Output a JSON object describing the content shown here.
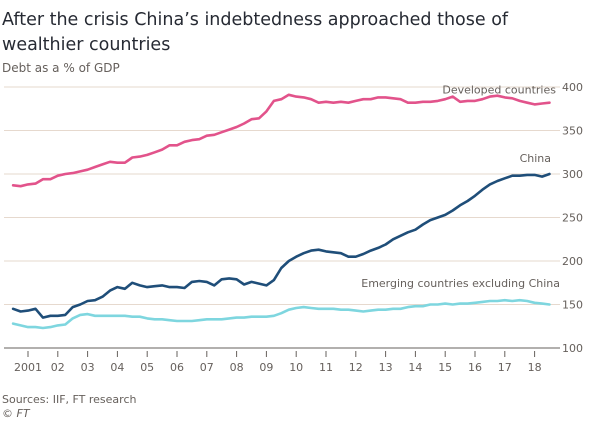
{
  "title": "After the crisis China’s indebtedness approached those of wealthier countries",
  "subtitle": "Debt as a % of GDP",
  "source": "Sources: IIF, FT research",
  "credit": "© FT",
  "colors": {
    "developed": "#e2538b",
    "china": "#1f4e79",
    "emerging": "#7ed6df",
    "grid": "#e6d9ce",
    "axis": "#66605c"
  },
  "chart_data": {
    "type": "line",
    "title": "After the crisis China’s indebtedness approached those of wealthier countries",
    "subtitle": "Debt as a % of GDP",
    "xlabel": "",
    "ylabel": "",
    "ylim": [
      100,
      400
    ],
    "xlim": [
      2000.5,
      2018.75
    ],
    "yticks": [
      100,
      150,
      200,
      250,
      300,
      350,
      400
    ],
    "y_axis_side": "right",
    "grid": true,
    "xticks": [
      {
        "x": 2001,
        "label": "2001"
      },
      {
        "x": 2002,
        "label": "02"
      },
      {
        "x": 2003,
        "label": "03"
      },
      {
        "x": 2004,
        "label": "04"
      },
      {
        "x": 2005,
        "label": "05"
      },
      {
        "x": 2006,
        "label": "06"
      },
      {
        "x": 2007,
        "label": "07"
      },
      {
        "x": 2008,
        "label": "08"
      },
      {
        "x": 2009,
        "label": "09"
      },
      {
        "x": 2010,
        "label": "10"
      },
      {
        "x": 2011,
        "label": "11"
      },
      {
        "x": 2012,
        "label": "12"
      },
      {
        "x": 2013,
        "label": "13"
      },
      {
        "x": 2014,
        "label": "14"
      },
      {
        "x": 2015,
        "label": "15"
      },
      {
        "x": 2016,
        "label": "16"
      },
      {
        "x": 2017,
        "label": "17"
      },
      {
        "x": 2018,
        "label": "18"
      }
    ],
    "series": [
      {
        "name": "Developed countries",
        "color": "#e2538b",
        "points": [
          [
            2000.5,
            287
          ],
          [
            2000.75,
            286
          ],
          [
            2001.0,
            288
          ],
          [
            2001.25,
            289
          ],
          [
            2001.5,
            294
          ],
          [
            2001.75,
            294
          ],
          [
            2002.0,
            298
          ],
          [
            2002.25,
            300
          ],
          [
            2002.5,
            301
          ],
          [
            2002.75,
            303
          ],
          [
            2003.0,
            305
          ],
          [
            2003.25,
            308
          ],
          [
            2003.5,
            311
          ],
          [
            2003.75,
            314
          ],
          [
            2004.0,
            313
          ],
          [
            2004.25,
            313
          ],
          [
            2004.5,
            319
          ],
          [
            2004.75,
            320
          ],
          [
            2005.0,
            322
          ],
          [
            2005.25,
            325
          ],
          [
            2005.5,
            328
          ],
          [
            2005.75,
            333
          ],
          [
            2006.0,
            333
          ],
          [
            2006.25,
            337
          ],
          [
            2006.5,
            339
          ],
          [
            2006.75,
            340
          ],
          [
            2007.0,
            344
          ],
          [
            2007.25,
            345
          ],
          [
            2007.5,
            348
          ],
          [
            2007.75,
            351
          ],
          [
            2008.0,
            354
          ],
          [
            2008.25,
            358
          ],
          [
            2008.5,
            363
          ],
          [
            2008.75,
            364
          ],
          [
            2009.0,
            372
          ],
          [
            2009.25,
            384
          ],
          [
            2009.5,
            386
          ],
          [
            2009.75,
            391
          ],
          [
            2010.0,
            389
          ],
          [
            2010.25,
            388
          ],
          [
            2010.5,
            386
          ],
          [
            2010.75,
            382
          ],
          [
            2011.0,
            383
          ],
          [
            2011.25,
            382
          ],
          [
            2011.5,
            383
          ],
          [
            2011.75,
            382
          ],
          [
            2012.0,
            384
          ],
          [
            2012.25,
            386
          ],
          [
            2012.5,
            386
          ],
          [
            2012.75,
            388
          ],
          [
            2013.0,
            388
          ],
          [
            2013.25,
            387
          ],
          [
            2013.5,
            386
          ],
          [
            2013.75,
            382
          ],
          [
            2014.0,
            382
          ],
          [
            2014.25,
            383
          ],
          [
            2014.5,
            383
          ],
          [
            2014.75,
            384
          ],
          [
            2015.0,
            386
          ],
          [
            2015.25,
            389
          ],
          [
            2015.5,
            383
          ],
          [
            2015.75,
            384
          ],
          [
            2016.0,
            384
          ],
          [
            2016.25,
            386
          ],
          [
            2016.5,
            389
          ],
          [
            2016.75,
            390
          ],
          [
            2017.0,
            388
          ],
          [
            2017.25,
            387
          ],
          [
            2017.5,
            384
          ],
          [
            2017.75,
            382
          ],
          [
            2018.0,
            380
          ],
          [
            2018.25,
            381
          ],
          [
            2018.5,
            382
          ]
        ]
      },
      {
        "name": "China",
        "color": "#1f4e79",
        "points": [
          [
            2000.5,
            145
          ],
          [
            2000.75,
            142
          ],
          [
            2001.0,
            143
          ],
          [
            2001.25,
            145
          ],
          [
            2001.5,
            135
          ],
          [
            2001.75,
            137
          ],
          [
            2002.0,
            137
          ],
          [
            2002.25,
            138
          ],
          [
            2002.5,
            147
          ],
          [
            2002.75,
            150
          ],
          [
            2003.0,
            154
          ],
          [
            2003.25,
            155
          ],
          [
            2003.5,
            159
          ],
          [
            2003.75,
            166
          ],
          [
            2004.0,
            170
          ],
          [
            2004.25,
            168
          ],
          [
            2004.5,
            175
          ],
          [
            2004.75,
            172
          ],
          [
            2005.0,
            170
          ],
          [
            2005.25,
            171
          ],
          [
            2005.5,
            172
          ],
          [
            2005.75,
            170
          ],
          [
            2006.0,
            170
          ],
          [
            2006.25,
            169
          ],
          [
            2006.5,
            176
          ],
          [
            2006.75,
            177
          ],
          [
            2007.0,
            176
          ],
          [
            2007.25,
            172
          ],
          [
            2007.5,
            179
          ],
          [
            2007.75,
            180
          ],
          [
            2008.0,
            179
          ],
          [
            2008.25,
            173
          ],
          [
            2008.5,
            176
          ],
          [
            2008.75,
            174
          ],
          [
            2009.0,
            172
          ],
          [
            2009.25,
            178
          ],
          [
            2009.5,
            192
          ],
          [
            2009.75,
            200
          ],
          [
            2010.0,
            205
          ],
          [
            2010.25,
            209
          ],
          [
            2010.5,
            212
          ],
          [
            2010.75,
            213
          ],
          [
            2011.0,
            211
          ],
          [
            2011.25,
            210
          ],
          [
            2011.5,
            209
          ],
          [
            2011.75,
            205
          ],
          [
            2012.0,
            205
          ],
          [
            2012.25,
            208
          ],
          [
            2012.5,
            212
          ],
          [
            2012.75,
            215
          ],
          [
            2013.0,
            219
          ],
          [
            2013.25,
            225
          ],
          [
            2013.5,
            229
          ],
          [
            2013.75,
            233
          ],
          [
            2014.0,
            236
          ],
          [
            2014.25,
            242
          ],
          [
            2014.5,
            247
          ],
          [
            2014.75,
            250
          ],
          [
            2015.0,
            253
          ],
          [
            2015.25,
            258
          ],
          [
            2015.5,
            264
          ],
          [
            2015.75,
            269
          ],
          [
            2016.0,
            275
          ],
          [
            2016.25,
            282
          ],
          [
            2016.5,
            288
          ],
          [
            2016.75,
            292
          ],
          [
            2017.0,
            295
          ],
          [
            2017.25,
            298
          ],
          [
            2017.5,
            298
          ],
          [
            2017.75,
            299
          ],
          [
            2018.0,
            299
          ],
          [
            2018.25,
            297
          ],
          [
            2018.5,
            300
          ]
        ]
      },
      {
        "name": "Emerging countries excluding China",
        "color": "#7ed6df",
        "points": [
          [
            2000.5,
            128
          ],
          [
            2000.75,
            126
          ],
          [
            2001.0,
            124
          ],
          [
            2001.25,
            124
          ],
          [
            2001.5,
            123
          ],
          [
            2001.75,
            124
          ],
          [
            2002.0,
            126
          ],
          [
            2002.25,
            127
          ],
          [
            2002.5,
            134
          ],
          [
            2002.75,
            138
          ],
          [
            2003.0,
            139
          ],
          [
            2003.25,
            137
          ],
          [
            2003.5,
            137
          ],
          [
            2003.75,
            137
          ],
          [
            2004.0,
            137
          ],
          [
            2004.25,
            137
          ],
          [
            2004.5,
            136
          ],
          [
            2004.75,
            136
          ],
          [
            2005.0,
            134
          ],
          [
            2005.25,
            133
          ],
          [
            2005.5,
            133
          ],
          [
            2005.75,
            132
          ],
          [
            2006.0,
            131
          ],
          [
            2006.25,
            131
          ],
          [
            2006.5,
            131
          ],
          [
            2006.75,
            132
          ],
          [
            2007.0,
            133
          ],
          [
            2007.25,
            133
          ],
          [
            2007.5,
            133
          ],
          [
            2007.75,
            134
          ],
          [
            2008.0,
            135
          ],
          [
            2008.25,
            135
          ],
          [
            2008.5,
            136
          ],
          [
            2008.75,
            136
          ],
          [
            2009.0,
            136
          ],
          [
            2009.25,
            137
          ],
          [
            2009.5,
            140
          ],
          [
            2009.75,
            144
          ],
          [
            2010.0,
            146
          ],
          [
            2010.25,
            147
          ],
          [
            2010.5,
            146
          ],
          [
            2010.75,
            145
          ],
          [
            2011.0,
            145
          ],
          [
            2011.25,
            145
          ],
          [
            2011.5,
            144
          ],
          [
            2011.75,
            144
          ],
          [
            2012.0,
            143
          ],
          [
            2012.25,
            142
          ],
          [
            2012.5,
            143
          ],
          [
            2012.75,
            144
          ],
          [
            2013.0,
            144
          ],
          [
            2013.25,
            145
          ],
          [
            2013.5,
            145
          ],
          [
            2013.75,
            147
          ],
          [
            2014.0,
            148
          ],
          [
            2014.25,
            148
          ],
          [
            2014.5,
            150
          ],
          [
            2014.75,
            150
          ],
          [
            2015.0,
            151
          ],
          [
            2015.25,
            150
          ],
          [
            2015.5,
            151
          ],
          [
            2015.75,
            151
          ],
          [
            2016.0,
            152
          ],
          [
            2016.25,
            153
          ],
          [
            2016.5,
            154
          ],
          [
            2016.75,
            154
          ],
          [
            2017.0,
            155
          ],
          [
            2017.25,
            154
          ],
          [
            2017.5,
            155
          ],
          [
            2017.75,
            154
          ],
          [
            2018.0,
            152
          ],
          [
            2018.25,
            151
          ],
          [
            2018.5,
            150
          ]
        ]
      }
    ]
  }
}
